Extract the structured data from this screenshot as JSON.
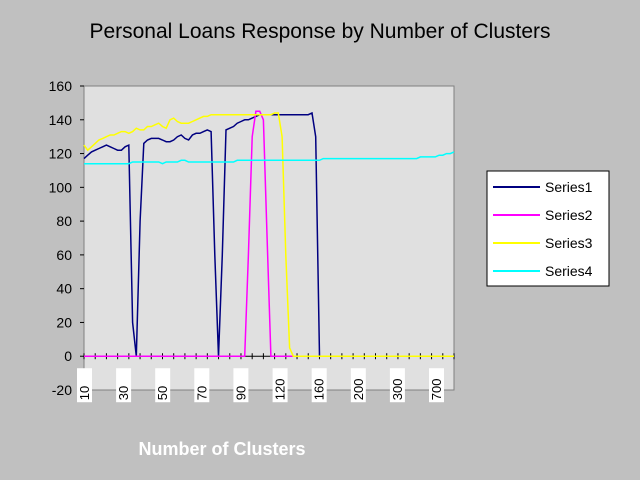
{
  "chart_data": {
    "type": "line",
    "title": "Personal Loans Response by Number of Clusters",
    "xlabel": "Number of Clusters",
    "ylabel": "",
    "ylim": [
      -20,
      160
    ],
    "yticks": [
      -20,
      0,
      20,
      40,
      60,
      80,
      100,
      120,
      140,
      160
    ],
    "x_tick_labels": [
      "10",
      "30",
      "50",
      "70",
      "90",
      "120",
      "160",
      "200",
      "300",
      "700"
    ],
    "grid": false,
    "legend": "right",
    "plot_background": "#e0e0e0",
    "series": [
      {
        "name": "Series1",
        "color": "#000080",
        "values": [
          117,
          119,
          121,
          122,
          123,
          124,
          125,
          124,
          123,
          122,
          122,
          124,
          125,
          20,
          0,
          80,
          126,
          128,
          129,
          129,
          129,
          128,
          127,
          127,
          128,
          130,
          131,
          129,
          128,
          131,
          132,
          132,
          133,
          134,
          133,
          60,
          0,
          60,
          134,
          135,
          136,
          138,
          139,
          140,
          140,
          141,
          142,
          143,
          143,
          143,
          143,
          143,
          143,
          143,
          143,
          143,
          143,
          143,
          143,
          143,
          143,
          144,
          130,
          0,
          0,
          0,
          0,
          0,
          0,
          0,
          0,
          0,
          0,
          0,
          0,
          0,
          0,
          0,
          0,
          0,
          0,
          0,
          0,
          0,
          0,
          0,
          0,
          0,
          0,
          0,
          0,
          0,
          0,
          0,
          0,
          0,
          0,
          0,
          0,
          0
        ]
      },
      {
        "name": "Series2",
        "color": "#ff00ff",
        "values": [
          0,
          0,
          0,
          0,
          0,
          0,
          0,
          0,
          0,
          0,
          0,
          0,
          0,
          0,
          0,
          0,
          0,
          0,
          0,
          0,
          0,
          0,
          0,
          0,
          0,
          0,
          0,
          0,
          0,
          0,
          0,
          0,
          0,
          0,
          0,
          0,
          0,
          0,
          0,
          0,
          0,
          0,
          0,
          0,
          60,
          130,
          145,
          145,
          140,
          70,
          0,
          0,
          0,
          0,
          0,
          0,
          0,
          0,
          0,
          0,
          0,
          0,
          0,
          0,
          0,
          0,
          0,
          0,
          0,
          0,
          0,
          0,
          0,
          0,
          0,
          0,
          0,
          0,
          0,
          0,
          0,
          0,
          0,
          0,
          0,
          0,
          0,
          0,
          0,
          0,
          0,
          0,
          0,
          0,
          0,
          0,
          0,
          0,
          0,
          0
        ]
      },
      {
        "name": "Series3",
        "color": "#ffff00",
        "values": [
          125,
          122,
          124,
          126,
          128,
          129,
          130,
          131,
          131,
          132,
          133,
          133,
          132,
          133,
          135,
          134,
          134,
          136,
          136,
          137,
          138,
          136,
          135,
          140,
          141,
          139,
          138,
          138,
          138,
          139,
          140,
          141,
          142,
          142,
          143,
          143,
          143,
          143,
          143,
          143,
          143,
          143,
          143,
          143,
          143,
          143,
          143,
          143,
          143,
          143,
          143,
          144,
          144,
          130,
          60,
          5,
          0,
          0,
          0,
          0,
          0,
          0,
          0,
          0,
          0,
          0,
          0,
          0,
          0,
          0,
          0,
          0,
          0,
          0,
          0,
          0,
          0,
          0,
          0,
          0,
          0,
          0,
          0,
          0,
          0,
          0,
          0,
          0,
          0,
          0,
          0,
          0,
          0,
          0,
          0,
          0,
          0,
          0,
          0,
          0
        ]
      },
      {
        "name": "Series4",
        "color": "#00ffff",
        "values": [
          114,
          114,
          114,
          114,
          114,
          114,
          114,
          114,
          114,
          114,
          114,
          114,
          114,
          115,
          115,
          115,
          115,
          115,
          115,
          115,
          115,
          114,
          115,
          115,
          115,
          115,
          116,
          116,
          115,
          115,
          115,
          115,
          115,
          115,
          115,
          115,
          115,
          115,
          115,
          115,
          115,
          116,
          116,
          116,
          116,
          116,
          116,
          116,
          116,
          116,
          116,
          116,
          116,
          116,
          116,
          116,
          116,
          116,
          116,
          116,
          116,
          116,
          116,
          116,
          117,
          117,
          117,
          117,
          117,
          117,
          117,
          117,
          117,
          117,
          117,
          117,
          117,
          117,
          117,
          117,
          117,
          117,
          117,
          117,
          117,
          117,
          117,
          117,
          117,
          117,
          118,
          118,
          118,
          118,
          118,
          119,
          119,
          120,
          120,
          121
        ]
      }
    ]
  }
}
